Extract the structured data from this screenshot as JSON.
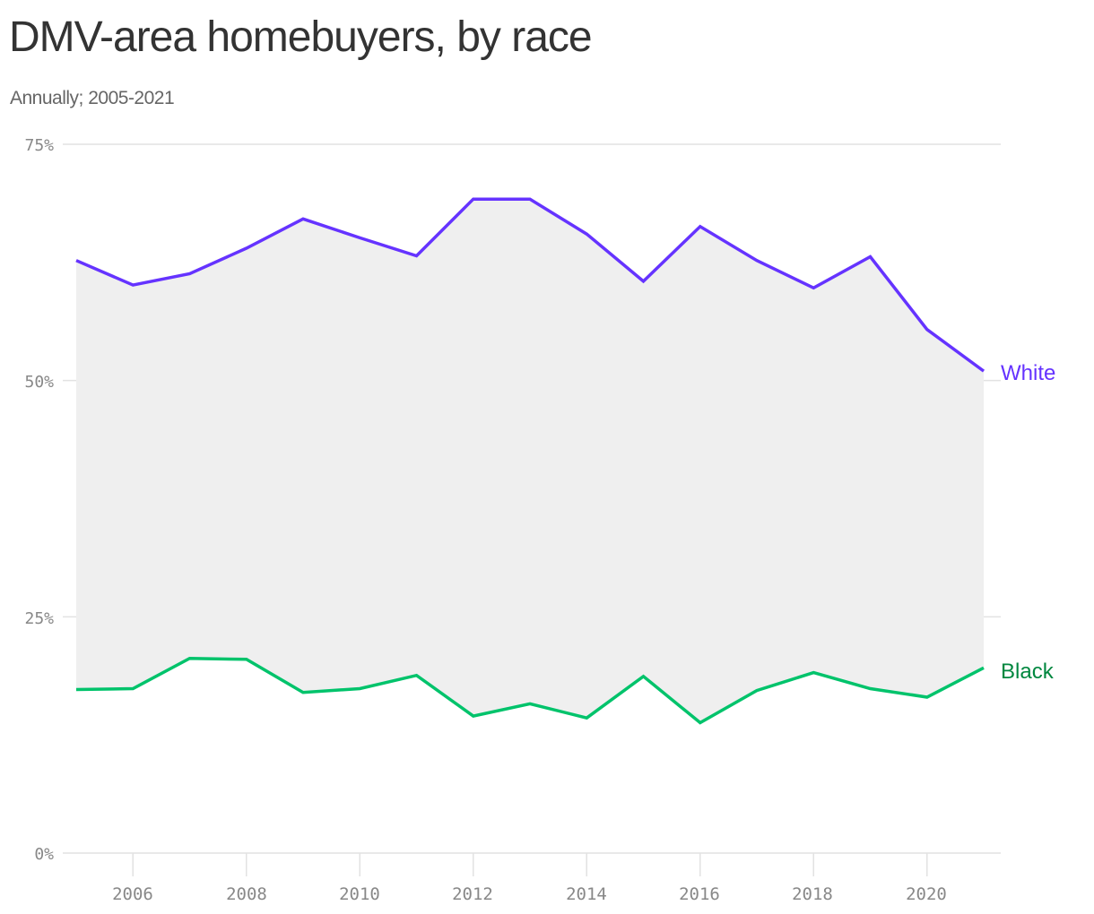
{
  "header": {
    "title": "DMV-area homebuyers, by race",
    "subtitle": "Annually; 2005-2021"
  },
  "axes": {
    "y_ticks": [
      "75%",
      "50%",
      "25%",
      "0%"
    ],
    "x_ticks": [
      "2006",
      "2008",
      "2010",
      "2012",
      "2014",
      "2016",
      "2018",
      "2020"
    ]
  },
  "series_labels": {
    "white": "White",
    "black": "Black"
  },
  "colors": {
    "white_line": "#6533ff",
    "white_label": "#6533ff",
    "black_line": "#00c36b",
    "black_label": "#00873f",
    "area_fill": "#efefef",
    "grid": "#e2e2e2"
  },
  "chart_data": {
    "type": "line",
    "title": "DMV-area homebuyers, by race",
    "subtitle": "Annually; 2005-2021",
    "xlabel": "",
    "ylabel": "",
    "x": [
      2005,
      2006,
      2007,
      2008,
      2009,
      2010,
      2011,
      2012,
      2013,
      2014,
      2015,
      2016,
      2017,
      2018,
      2019,
      2020,
      2021
    ],
    "series": [
      {
        "name": "White",
        "values": [
          62.7,
          60.1,
          61.3,
          64.0,
          67.1,
          65.1,
          63.2,
          69.2,
          69.2,
          65.5,
          60.5,
          66.3,
          62.7,
          59.8,
          63.1,
          55.4,
          51.0
        ]
      },
      {
        "name": "Black",
        "values": [
          17.3,
          17.4,
          20.6,
          20.5,
          17.0,
          17.4,
          18.8,
          14.5,
          15.8,
          14.3,
          18.7,
          13.8,
          17.2,
          19.1,
          17.4,
          16.5,
          19.6
        ]
      }
    ],
    "ylim": [
      0,
      75
    ],
    "y_ticks": [
      0,
      25,
      50,
      75
    ],
    "y_tick_labels": [
      "0%",
      "25%",
      "50%",
      "75%"
    ],
    "x_ticks": [
      2006,
      2008,
      2010,
      2012,
      2014,
      2016,
      2018,
      2020
    ],
    "grid": true,
    "legend": "direct labels at line ends",
    "annotations": [
      "Shaded area between White and Black lines"
    ]
  }
}
